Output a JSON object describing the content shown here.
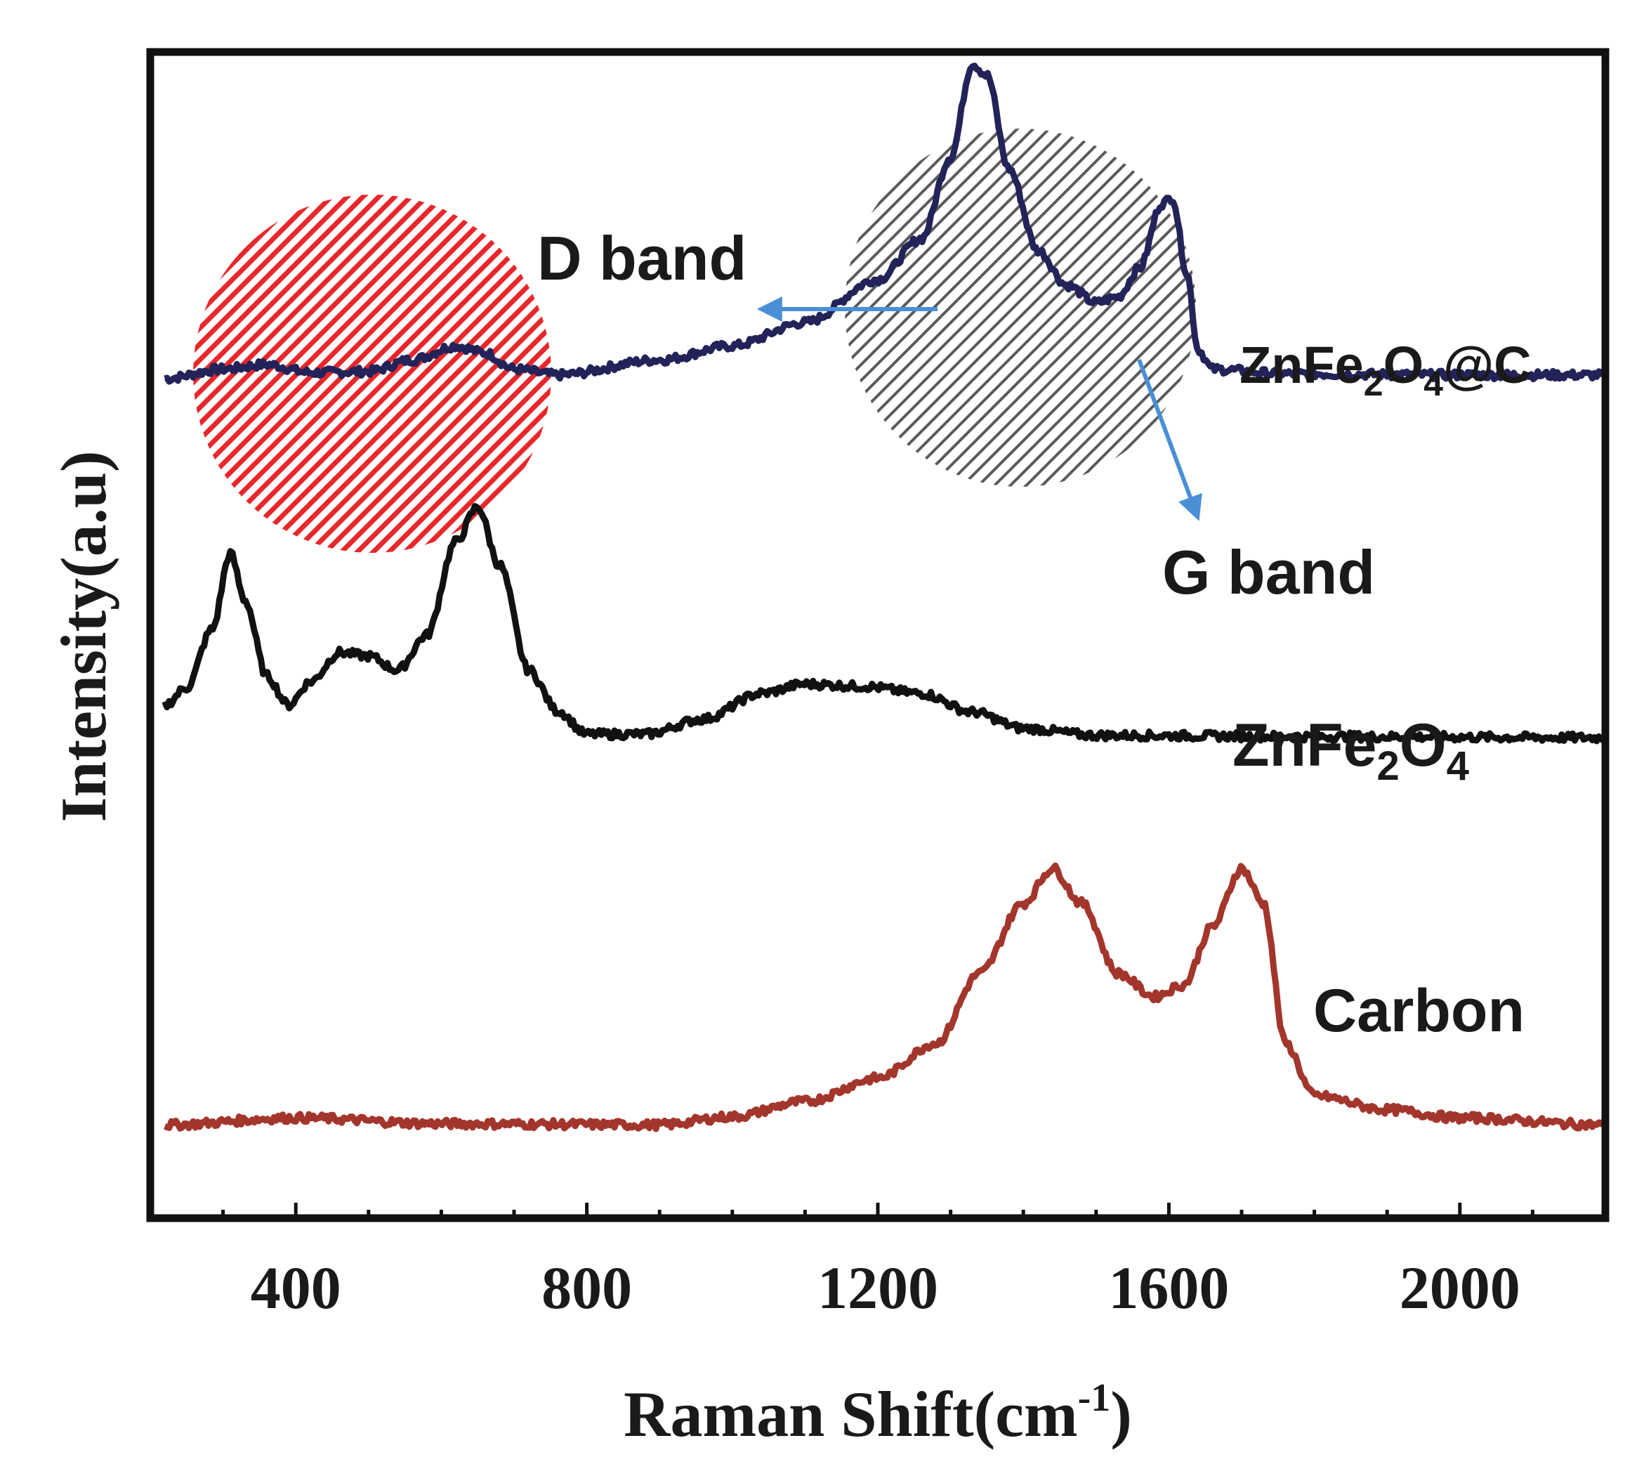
{
  "chart_data": {
    "type": "line",
    "title": "",
    "xlabel": "Raman Shift(cm-1)",
    "xlabel_parts": {
      "base": "Raman Shift(cm",
      "sup": "-1",
      "close": ")"
    },
    "ylabel": "Intensity(a.u)",
    "xlim": [
      200,
      2200
    ],
    "ylim": [
      0,
      100
    ],
    "xticks": [
      400,
      800,
      1200,
      1600,
      2000
    ],
    "yticks_shown": false,
    "grid": false,
    "legend": "none",
    "series": [
      {
        "name": "ZnFe2O4@C",
        "label_parts": [
          "ZnFe",
          "2",
          "O",
          "4",
          "@C"
        ],
        "color": "#23235a",
        "baseline": 72,
        "points": [
          [
            220,
            0
          ],
          [
            300,
            0.8
          ],
          [
            360,
            1.2
          ],
          [
            420,
            0.5
          ],
          [
            500,
            0.6
          ],
          [
            560,
            1.6
          ],
          [
            620,
            2.8
          ],
          [
            660,
            2.2
          ],
          [
            700,
            0.8
          ],
          [
            760,
            0.3
          ],
          [
            900,
            1.6
          ],
          [
            1000,
            2.8
          ],
          [
            1100,
            4.8
          ],
          [
            1200,
            8.5
          ],
          [
            1260,
            12
          ],
          [
            1300,
            19
          ],
          [
            1330,
            27
          ],
          [
            1350,
            26
          ],
          [
            1380,
            18
          ],
          [
            1420,
            11
          ],
          [
            1460,
            8
          ],
          [
            1500,
            6.5
          ],
          [
            1530,
            7
          ],
          [
            1560,
            9.5
          ],
          [
            1590,
            15
          ],
          [
            1605,
            15.5
          ],
          [
            1625,
            9
          ],
          [
            1640,
            2.5
          ],
          [
            1660,
            0.8
          ],
          [
            1760,
            0.4
          ],
          [
            2000,
            0.3
          ],
          [
            2200,
            0.3
          ]
        ]
      },
      {
        "name": "ZnFe2O4",
        "label_parts": [
          "ZnFe",
          "2",
          "O",
          "4"
        ],
        "color": "#111111",
        "baseline": 41,
        "points": [
          [
            220,
            3
          ],
          [
            250,
            4.5
          ],
          [
            285,
            9.5
          ],
          [
            310,
            16
          ],
          [
            330,
            12
          ],
          [
            360,
            5.5
          ],
          [
            390,
            3
          ],
          [
            420,
            5
          ],
          [
            460,
            7.5
          ],
          [
            500,
            7.2
          ],
          [
            540,
            6
          ],
          [
            580,
            9
          ],
          [
            620,
            17
          ],
          [
            650,
            20
          ],
          [
            680,
            15
          ],
          [
            720,
            6
          ],
          [
            760,
            2.5
          ],
          [
            800,
            0.5
          ],
          [
            880,
            0.5
          ],
          [
            960,
            1.8
          ],
          [
            1040,
            4
          ],
          [
            1100,
            4.8
          ],
          [
            1180,
            4.6
          ],
          [
            1260,
            4
          ],
          [
            1330,
            2.4
          ],
          [
            1400,
            1
          ],
          [
            1500,
            0.4
          ],
          [
            1800,
            0.3
          ],
          [
            2200,
            0.2
          ]
        ]
      },
      {
        "name": "Carbon",
        "label_parts": [
          "Carbon"
        ],
        "color": "#a3362c",
        "baseline": 8,
        "points": [
          [
            220,
            0
          ],
          [
            400,
            0.6
          ],
          [
            600,
            0.1
          ],
          [
            900,
            0
          ],
          [
            1000,
            0.7
          ],
          [
            1100,
            2
          ],
          [
            1200,
            4
          ],
          [
            1280,
            7
          ],
          [
            1340,
            13
          ],
          [
            1400,
            19
          ],
          [
            1440,
            22
          ],
          [
            1480,
            19
          ],
          [
            1530,
            13
          ],
          [
            1580,
            11
          ],
          [
            1620,
            12
          ],
          [
            1660,
            17
          ],
          [
            1700,
            22
          ],
          [
            1730,
            19
          ],
          [
            1760,
            7
          ],
          [
            1800,
            2.5
          ],
          [
            1900,
            1.3
          ],
          [
            2000,
            0.6
          ],
          [
            2200,
            0
          ]
        ]
      }
    ],
    "annotations": [
      {
        "name": "D band",
        "text": "D band",
        "points_to": "ZnFe2O4@C peak near 1350"
      },
      {
        "name": "G band",
        "text": "G band",
        "points_to": "ZnFe2O4@C peak near 1590"
      }
    ],
    "highlight_regions": [
      {
        "name": "red-hatched-region",
        "color": "#e8272a",
        "center_x": 480,
        "radius_x": 240
      },
      {
        "name": "gray-hatched-region",
        "color": "#555555",
        "center_x": 1440,
        "radius_x": 245
      }
    ],
    "arrow_color": "#4a8fd6"
  }
}
